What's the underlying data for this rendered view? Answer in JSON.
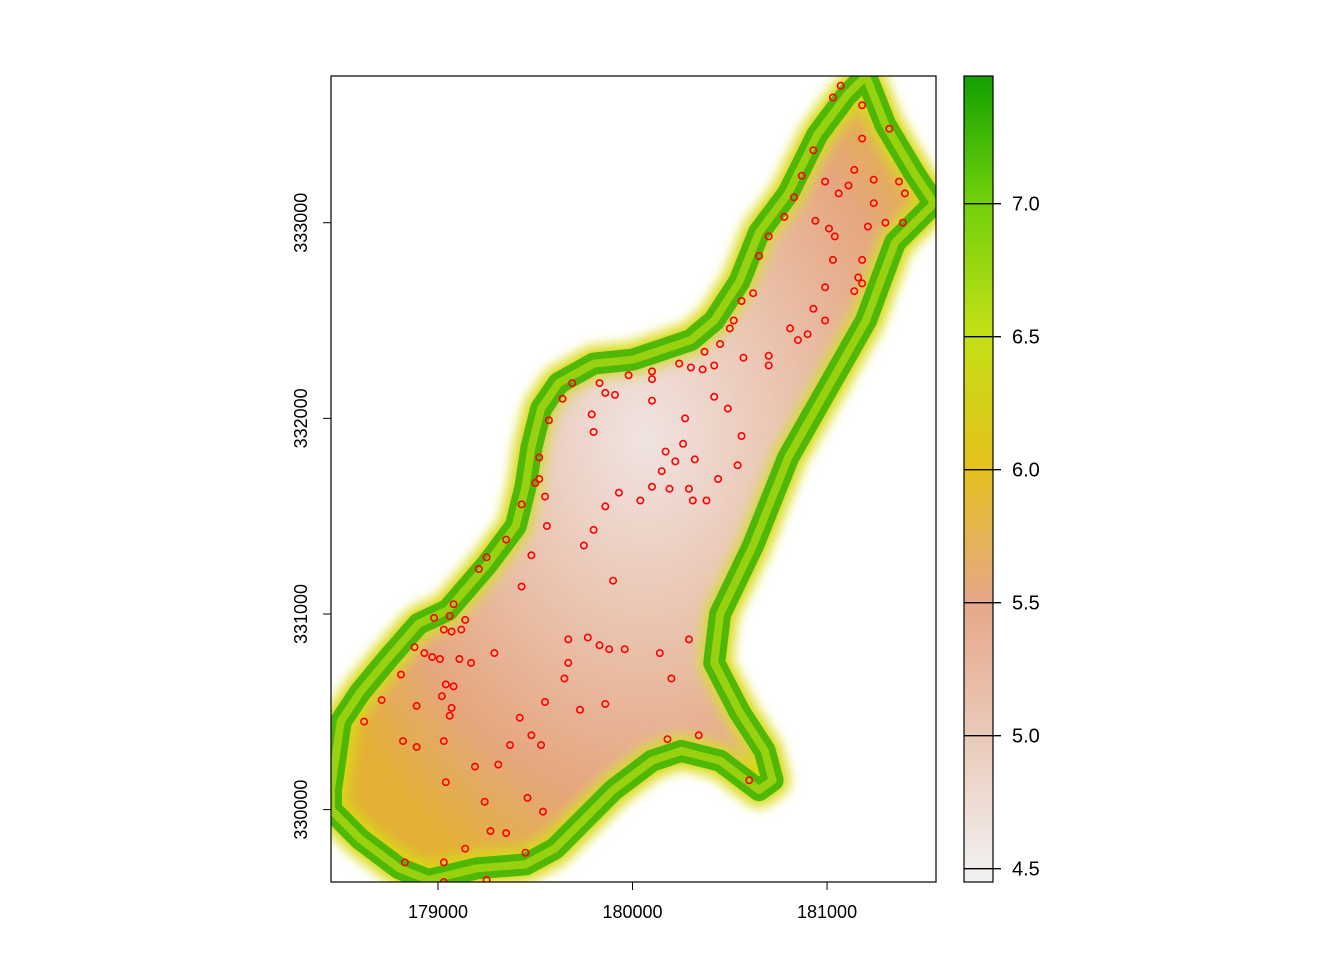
{
  "map": {
    "x_axis": {
      "range": [
        178450,
        181560
      ],
      "ticks": [
        {
          "value": 179000,
          "label": "179000"
        },
        {
          "value": 180000,
          "label": "180000"
        },
        {
          "value": 181000,
          "label": "181000"
        }
      ]
    },
    "y_axis": {
      "range": [
        329630,
        333750
      ],
      "ticks": [
        {
          "value": 330000,
          "label": "330000"
        },
        {
          "value": 331000,
          "label": "331000"
        },
        {
          "value": 332000,
          "label": "332000"
        },
        {
          "value": 333000,
          "label": "333000"
        }
      ]
    },
    "raster": {
      "description_values": "log-scaled interpolated surface",
      "value_range": [
        4.45,
        7.48
      ],
      "region_outline": [
        [
          178450,
          330100
        ],
        [
          178500,
          330450
        ],
        [
          178600,
          330600
        ],
        [
          178750,
          330780
        ],
        [
          178900,
          330950
        ],
        [
          179050,
          331020
        ],
        [
          179250,
          331250
        ],
        [
          179400,
          331450
        ],
        [
          179450,
          331650
        ],
        [
          179480,
          331850
        ],
        [
          179530,
          332050
        ],
        [
          179620,
          332180
        ],
        [
          179800,
          332280
        ],
        [
          180000,
          332300
        ],
        [
          180150,
          332350
        ],
        [
          180300,
          332400
        ],
        [
          180420,
          332500
        ],
        [
          180550,
          332700
        ],
        [
          180650,
          332950
        ],
        [
          180800,
          333150
        ],
        [
          180950,
          333450
        ],
        [
          181100,
          333650
        ],
        [
          181200,
          333750
        ],
        [
          181300,
          333500
        ],
        [
          181450,
          333250
        ],
        [
          181550,
          333100
        ],
        [
          181350,
          332900
        ],
        [
          181200,
          332500
        ],
        [
          181000,
          332150
        ],
        [
          180800,
          331800
        ],
        [
          180620,
          331350
        ],
        [
          180450,
          331000
        ],
        [
          180420,
          330750
        ],
        [
          180550,
          330500
        ],
        [
          180680,
          330300
        ],
        [
          180720,
          330150
        ],
        [
          180650,
          330100
        ],
        [
          180450,
          330250
        ],
        [
          180250,
          330300
        ],
        [
          180100,
          330250
        ],
        [
          179900,
          330100
        ],
        [
          179750,
          329950
        ],
        [
          179600,
          329800
        ],
        [
          179450,
          329720
        ],
        [
          179200,
          329700
        ],
        [
          178950,
          329640
        ],
        [
          178800,
          329700
        ],
        [
          178600,
          329850
        ],
        [
          178450,
          330000
        ]
      ]
    },
    "points_color": "#ff0000",
    "points": [
      [
        178620,
        330450
      ],
      [
        178710,
        330560
      ],
      [
        178810,
        330690
      ],
      [
        178880,
        330830
      ],
      [
        178930,
        330800
      ],
      [
        178970,
        330780
      ],
      [
        179010,
        330770
      ],
      [
        178890,
        330530
      ],
      [
        178820,
        330350
      ],
      [
        178890,
        330320
      ],
      [
        179030,
        330350
      ],
      [
        179060,
        330480
      ],
      [
        179070,
        330520
      ],
      [
        179020,
        330580
      ],
      [
        179040,
        330640
      ],
      [
        179080,
        330630
      ],
      [
        179110,
        330770
      ],
      [
        179170,
        330750
      ],
      [
        179290,
        330800
      ],
      [
        179060,
        330990
      ],
      [
        178980,
        330980
      ],
      [
        179030,
        330920
      ],
      [
        179070,
        330910
      ],
      [
        179120,
        330920
      ],
      [
        179140,
        330970
      ],
      [
        179080,
        331050
      ],
      [
        179210,
        331230
      ],
      [
        179250,
        331290
      ],
      [
        179350,
        331380
      ],
      [
        179430,
        331560
      ],
      [
        179500,
        331670
      ],
      [
        179520,
        331690
      ],
      [
        179550,
        331600
      ],
      [
        179560,
        331450
      ],
      [
        179480,
        331300
      ],
      [
        179430,
        331140
      ],
      [
        179520,
        331800
      ],
      [
        179570,
        331990
      ],
      [
        179640,
        332100
      ],
      [
        179690,
        332180
      ],
      [
        179790,
        332020
      ],
      [
        179800,
        331930
      ],
      [
        179830,
        332180
      ],
      [
        179860,
        332130
      ],
      [
        179910,
        332120
      ],
      [
        179980,
        332220
      ],
      [
        180100,
        332240
      ],
      [
        180100,
        332090
      ],
      [
        180100,
        332200
      ],
      [
        180240,
        332280
      ],
      [
        180300,
        332260
      ],
      [
        180360,
        332250
      ],
      [
        180370,
        332340
      ],
      [
        180450,
        332380
      ],
      [
        180520,
        332500
      ],
      [
        180500,
        332460
      ],
      [
        180560,
        332600
      ],
      [
        180620,
        332640
      ],
      [
        180650,
        332830
      ],
      [
        180700,
        332930
      ],
      [
        180780,
        333030
      ],
      [
        180830,
        333130
      ],
      [
        180870,
        333240
      ],
      [
        180930,
        333370
      ],
      [
        180990,
        333210
      ],
      [
        180940,
        333010
      ],
      [
        181010,
        332970
      ],
      [
        181040,
        332930
      ],
      [
        181060,
        333150
      ],
      [
        181110,
        333190
      ],
      [
        181140,
        333270
      ],
      [
        181180,
        333430
      ],
      [
        181180,
        333600
      ],
      [
        181070,
        333700
      ],
      [
        181030,
        333640
      ],
      [
        181240,
        333220
      ],
      [
        181320,
        333480
      ],
      [
        181370,
        333210
      ],
      [
        181400,
        333150
      ],
      [
        181390,
        333000
      ],
      [
        181300,
        333000
      ],
      [
        181240,
        333100
      ],
      [
        181210,
        332980
      ],
      [
        181180,
        332810
      ],
      [
        181160,
        332720
      ],
      [
        181180,
        332690
      ],
      [
        181140,
        332650
      ],
      [
        181030,
        332810
      ],
      [
        180990,
        332670
      ],
      [
        180930,
        332560
      ],
      [
        180990,
        332500
      ],
      [
        180900,
        332430
      ],
      [
        180850,
        332400
      ],
      [
        180810,
        332460
      ],
      [
        180700,
        332320
      ],
      [
        180700,
        332270
      ],
      [
        180570,
        332310
      ],
      [
        180420,
        332270
      ],
      [
        180420,
        332110
      ],
      [
        180490,
        332050
      ],
      [
        180560,
        331910
      ],
      [
        180540,
        331760
      ],
      [
        180440,
        331690
      ],
      [
        180380,
        331580
      ],
      [
        180290,
        331640
      ],
      [
        180320,
        331790
      ],
      [
        180270,
        332000
      ],
      [
        180260,
        331870
      ],
      [
        180220,
        331780
      ],
      [
        180170,
        331830
      ],
      [
        180150,
        331730
      ],
      [
        180100,
        331650
      ],
      [
        180040,
        331580
      ],
      [
        180190,
        331640
      ],
      [
        180310,
        331580
      ],
      [
        179930,
        331620
      ],
      [
        179860,
        331550
      ],
      [
        179800,
        331430
      ],
      [
        179750,
        331350
      ],
      [
        179900,
        331170
      ],
      [
        179960,
        330820
      ],
      [
        179880,
        330820
      ],
      [
        179830,
        330840
      ],
      [
        179770,
        330880
      ],
      [
        179670,
        330870
      ],
      [
        179670,
        330750
      ],
      [
        179650,
        330670
      ],
      [
        179550,
        330550
      ],
      [
        179420,
        330470
      ],
      [
        179480,
        330380
      ],
      [
        179530,
        330330
      ],
      [
        179370,
        330330
      ],
      [
        179190,
        330220
      ],
      [
        179310,
        330230
      ],
      [
        179040,
        330140
      ],
      [
        179240,
        330040
      ],
      [
        179460,
        330060
      ],
      [
        179540,
        329990
      ],
      [
        179270,
        329890
      ],
      [
        179350,
        329880
      ],
      [
        179140,
        329800
      ],
      [
        179030,
        329730
      ],
      [
        178830,
        329730
      ],
      [
        179030,
        329630
      ],
      [
        179250,
        329640
      ],
      [
        179450,
        329780
      ],
      [
        180140,
        330800
      ],
      [
        180290,
        330870
      ],
      [
        180200,
        330670
      ],
      [
        179860,
        330540
      ],
      [
        179730,
        330510
      ],
      [
        180180,
        330360
      ],
      [
        180340,
        330380
      ],
      [
        180600,
        330150
      ]
    ]
  },
  "legend": {
    "range": [
      4.45,
      7.48
    ],
    "ticks": [
      {
        "value": 4.5,
        "label": "4.5"
      },
      {
        "value": 5.0,
        "label": "5.0"
      },
      {
        "value": 5.5,
        "label": "5.5"
      },
      {
        "value": 6.0,
        "label": "6.0"
      },
      {
        "value": 6.5,
        "label": "6.5"
      },
      {
        "value": 7.0,
        "label": "7.0"
      }
    ],
    "colors": [
      "#f2f2f2",
      "#eacaba",
      "#e6a787",
      "#e4c21a",
      "#c3e016",
      "#6ecf0b",
      "#12a000"
    ]
  }
}
